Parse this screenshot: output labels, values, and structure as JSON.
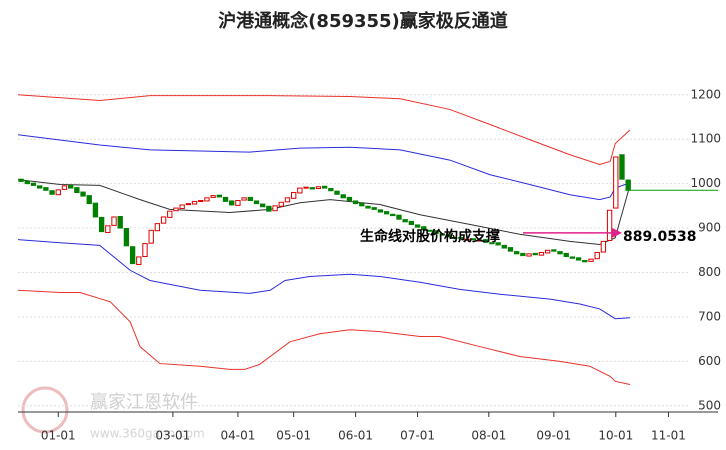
{
  "chart_data": {
    "type": "candlestick",
    "title": "沪港通概念(859355)赢家极反通道",
    "ylim": [
      486,
      1330
    ],
    "yticks": [
      500,
      600,
      700,
      800,
      900,
      1000,
      1100,
      1200
    ],
    "xlim": [
      0,
      113
    ],
    "xticks": [
      {
        "value": 6.5,
        "label": "01-01"
      },
      {
        "value": 25,
        "label": "03-01"
      },
      {
        "value": 35.5,
        "label": "04-01"
      },
      {
        "value": 44.5,
        "label": "05-01"
      },
      {
        "value": 54.5,
        "label": "06-01"
      },
      {
        "value": 64.5,
        "label": "07-01"
      },
      {
        "value": 76,
        "label": "08-01"
      },
      {
        "value": 86.5,
        "label": "09-01"
      },
      {
        "value": 96.5,
        "label": "10-01"
      },
      {
        "value": 105,
        "label": "11-01"
      }
    ],
    "grid": true,
    "candles": {
      "up_color": "#e00000",
      "down_color": "#008000",
      "x": [
        0.5,
        1.5,
        2.5,
        3.5,
        4.5,
        5.5,
        6.5,
        7.5,
        8.5,
        9.5,
        10.5,
        11.5,
        12.5,
        13.5,
        14.5,
        15.5,
        16.5,
        17.5,
        18.5,
        19.5,
        20.5,
        21.5,
        22.5,
        23.5,
        24.5,
        25.5,
        26.5,
        27.5,
        28.5,
        29.5,
        30.5,
        31.5,
        32.5,
        33.5,
        34.5,
        35.5,
        36.5,
        37.5,
        38.5,
        39.5,
        40.5,
        41.5,
        42.5,
        43.5,
        44.5,
        45.5,
        46.5,
        47.5,
        48.5,
        49.5,
        50.5,
        51.5,
        52.5,
        53.5,
        54.5,
        55.5,
        56.5,
        57.5,
        58.5,
        59.5,
        60.5,
        61.5,
        62.5,
        63.5,
        64.5,
        65.5,
        66.5,
        67.5,
        68.5,
        69.5,
        70.5,
        71.5,
        72.5,
        73.5,
        74.5,
        75.5,
        76.5,
        77.5,
        78.5,
        79.5,
        80.5,
        81.5,
        82.5,
        83.5,
        84.5,
        85.5,
        86.5,
        87.5,
        88.5,
        89.5,
        90.5,
        91.5,
        92.5,
        93.5,
        94.5,
        95.5,
        96.5,
        97.5,
        98.5
      ],
      "open": [
        1010,
        1006,
        1001,
        995,
        991,
        984,
        975,
        987,
        996,
        991,
        981,
        973,
        956,
        924,
        890,
        906,
        926,
        899,
        858,
        818,
        836,
        866,
        894,
        911,
        924,
        939,
        944,
        953,
        954,
        961,
        961,
        969,
        974,
        969,
        961,
        951,
        963,
        969,
        961,
        954,
        949,
        939,
        949,
        959,
        967,
        979,
        991,
        991,
        989,
        994,
        989,
        983,
        975,
        969,
        961,
        956,
        949,
        946,
        941,
        937,
        931,
        929,
        919,
        915,
        907,
        903,
        895,
        894,
        887,
        885,
        879,
        879,
        875,
        876,
        873,
        874,
        867,
        867,
        861,
        856,
        847,
        843,
        837,
        843,
        839,
        844,
        851,
        847,
        843,
        835,
        833,
        827,
        825,
        831,
        846,
        872,
        945,
        1065,
        1008
      ],
      "close": [
        1005,
        1000,
        996,
        990,
        985,
        976,
        986,
        995,
        990,
        980,
        972,
        955,
        925,
        892,
        905,
        925,
        900,
        860,
        820,
        835,
        865,
        895,
        910,
        925,
        938,
        945,
        952,
        955,
        960,
        962,
        968,
        973,
        970,
        960,
        952,
        962,
        968,
        962,
        955,
        948,
        938,
        950,
        958,
        968,
        980,
        990,
        992,
        988,
        993,
        990,
        984,
        976,
        968,
        962,
        955,
        950,
        945,
        942,
        936,
        932,
        928,
        920,
        914,
        908,
        902,
        896,
        893,
        888,
        884,
        880,
        878,
        876,
        875,
        874,
        873,
        868,
        866,
        862,
        855,
        848,
        842,
        838,
        842,
        840,
        845,
        850,
        848,
        842,
        836,
        832,
        828,
        824,
        830,
        845,
        870,
        940,
        1060,
        1010,
        985
      ]
    },
    "price_line": {
      "value": 985,
      "color": "#00a000"
    },
    "lines": [
      {
        "color": "#e8322a",
        "x": [
          0,
          13.2,
          21.3,
          29.4,
          40.7,
          53.6,
          61.7,
          69.7,
          76.2,
          82.6,
          89.1,
          93.9,
          95.6,
          96.4,
          98.8
        ],
        "values": [
          1200,
          1187,
          1198,
          1198,
          1198,
          1196,
          1191,
          1167,
          1133,
          1099,
          1065,
          1043,
          1050,
          1090,
          1121
        ]
      },
      {
        "color": "#2b2bdc",
        "x": [
          0,
          13.2,
          21.3,
          37.4,
          45.5,
          53.6,
          61.7,
          69.7,
          76.2,
          82.6,
          89.1,
          93.9,
          95.6,
          96.4,
          98.8
        ],
        "values": [
          1110,
          1087,
          1076,
          1071,
          1080,
          1082,
          1076,
          1053,
          1020,
          998,
          975,
          964,
          970,
          990,
          1002
        ]
      },
      {
        "color": "#333333",
        "x": [
          0,
          6.8,
          13.2,
          19.7,
          24.5,
          34.2,
          40.7,
          45.5,
          50.4,
          58.4,
          64.9,
          73,
          81,
          89.1,
          93.9,
          96.4,
          98.8
        ],
        "values": [
          1009,
          998,
          996,
          964,
          942,
          935,
          942,
          957,
          964,
          953,
          930,
          908,
          886,
          870,
          863,
          878,
          997
        ]
      },
      {
        "color": "#2b2bdc",
        "x": [
          0,
          6.8,
          13.2,
          18.1,
          21.3,
          29.4,
          37.4,
          40.7,
          43.1,
          47.1,
          53.6,
          58.4,
          64.9,
          71.3,
          77.8,
          85.9,
          90.7,
          93.9,
          96.4,
          98.8
        ],
        "values": [
          874,
          867,
          861,
          805,
          782,
          760,
          753,
          760,
          782,
          791,
          796,
          791,
          778,
          762,
          751,
          740,
          729,
          718,
          696,
          698
        ]
      },
      {
        "color": "#e8322a",
        "x": [
          0,
          6.8,
          10,
          14.9,
          18.1,
          19.7,
          22.9,
          29.4,
          34.2,
          36.6,
          39,
          43.9,
          48.7,
          53.6,
          58.4,
          64.9,
          68.1,
          74.6,
          81,
          87.5,
          92.3,
          95.6,
          96.4,
          98.8
        ],
        "values": [
          760,
          755,
          755,
          734,
          689,
          633,
          595,
          589,
          582,
          582,
          593,
          644,
          662,
          671,
          667,
          656,
          656,
          633,
          611,
          600,
          589,
          566,
          555,
          548
        ]
      }
    ],
    "annotation": {
      "text": "生命线对股价构成支撑",
      "value": 889.0538,
      "value_label": "889.0538",
      "color": "#e0208a"
    },
    "watermark": {
      "name": "赢家江恩软件",
      "url": "www.360gann.com"
    }
  }
}
